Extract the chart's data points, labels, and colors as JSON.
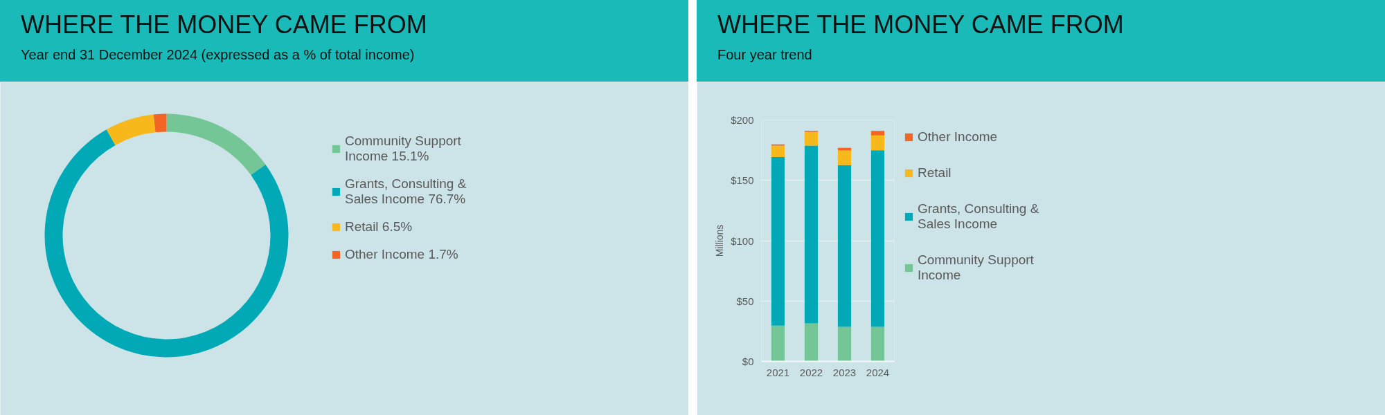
{
  "chart_data": [
    {
      "type": "donut",
      "title": "WHERE THE MONEY CAME FROM",
      "subtitle": "Year end 31 December 2024 (expressed as a % of total income)",
      "categories": [
        "Community Support Income 15.1%",
        "Grants, Consulting & Sales Income 76.7%",
        "Retail 6.5%",
        "Other Income 1.7%"
      ],
      "values": [
        15.1,
        76.7,
        6.5,
        1.7
      ],
      "colors": [
        "#75c696",
        "#00a9b5",
        "#f6b81a",
        "#f26522"
      ],
      "legend": "right"
    },
    {
      "type": "bar",
      "title": "WHERE THE MONEY CAME FROM",
      "subtitle": "Four year trend",
      "ylabel": "Millions",
      "stacked": true,
      "categories": [
        "2021",
        "2022",
        "2023",
        "2024"
      ],
      "series": [
        {
          "name": "Community Support Income",
          "color": "#75c696",
          "values": [
            29.6,
            31.5,
            28.6,
            28.6
          ]
        },
        {
          "name": "Grants, Consulting & Sales Income",
          "color": "#00a9b5",
          "values": [
            139.7,
            147.3,
            134.0,
            146.4
          ]
        },
        {
          "name": "Retail",
          "color": "#f6b81a",
          "values": [
            9.5,
            11.3,
            12.2,
            12.2
          ]
        },
        {
          "name": "Other Income",
          "color": "#f26522",
          "values": [
            1.0,
            0.9,
            2.1,
            3.8
          ]
        }
      ],
      "ylim": [
        0,
        200
      ],
      "yticks": [
        {
          "value": 0,
          "label": "$0"
        },
        {
          "value": 50,
          "label": "$50"
        },
        {
          "value": 100,
          "label": "$100"
        },
        {
          "value": 150,
          "label": "$150"
        },
        {
          "value": 200,
          "label": "$200"
        }
      ],
      "grid": "y",
      "legend": "right"
    }
  ]
}
